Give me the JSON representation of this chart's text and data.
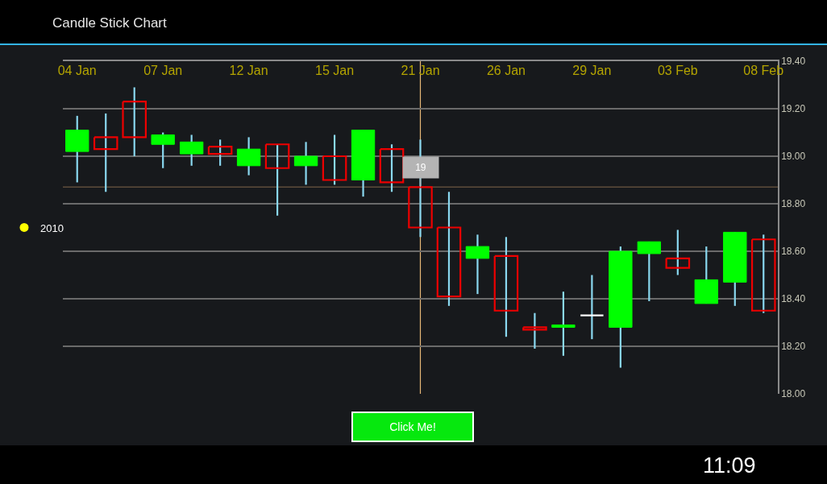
{
  "chart_data": {
    "type": "candlestick",
    "title": "Candle Stick Chart",
    "categories": [
      "04 Jan",
      null,
      null,
      "07 Jan",
      null,
      null,
      "12 Jan",
      null,
      null,
      "15 Jan",
      null,
      null,
      "21 Jan",
      null,
      null,
      "26 Jan",
      null,
      null,
      "29 Jan",
      null,
      null,
      "03 Feb",
      null,
      null,
      "08 Feb"
    ],
    "series": [
      {
        "name": "2010",
        "color": "#ffff00",
        "ohlc": [
          [
            19.02,
            19.17,
            18.89,
            19.11
          ],
          [
            19.08,
            19.18,
            18.85,
            19.03
          ],
          [
            19.23,
            19.29,
            19.0,
            19.08
          ],
          [
            19.05,
            19.1,
            18.95,
            19.09
          ],
          [
            19.01,
            19.09,
            18.96,
            19.06
          ],
          [
            19.04,
            19.07,
            18.96,
            19.01
          ],
          [
            18.96,
            19.08,
            18.92,
            19.03
          ],
          [
            19.05,
            19.05,
            18.75,
            18.95
          ],
          [
            18.96,
            19.06,
            18.88,
            19.0
          ],
          [
            19.0,
            19.09,
            18.88,
            18.9
          ],
          [
            18.9,
            19.11,
            18.83,
            19.11
          ],
          [
            19.03,
            19.05,
            18.85,
            18.89
          ],
          [
            18.87,
            19.07,
            18.66,
            18.7
          ],
          [
            18.7,
            18.85,
            18.37,
            18.41
          ],
          [
            18.57,
            18.67,
            18.42,
            18.62
          ],
          [
            18.58,
            18.66,
            18.24,
            18.35
          ],
          [
            18.28,
            18.34,
            18.19,
            18.27
          ],
          [
            18.28,
            18.43,
            18.16,
            18.29
          ],
          [
            18.33,
            18.5,
            18.23,
            18.33
          ],
          [
            18.28,
            18.62,
            18.11,
            18.6
          ],
          [
            18.59,
            18.64,
            18.39,
            18.64
          ],
          [
            18.57,
            18.69,
            18.5,
            18.53
          ],
          [
            18.38,
            18.62,
            18.38,
            18.48
          ],
          [
            18.47,
            18.68,
            18.37,
            18.68
          ],
          [
            18.65,
            18.67,
            18.34,
            18.35
          ]
        ],
        "colors": [
          "#00ff00",
          "#ee0000",
          "#ee0000",
          "#00ff00",
          "#00ff00",
          "#ee0000",
          "#00ff00",
          "#ee0000",
          "#00ff00",
          "#ee0000",
          "#00ff00",
          "#ee0000",
          "#ee0000",
          "#ee0000",
          "#00ff00",
          "#ee0000",
          "#ee0000",
          "#00ff00",
          "#ffffff",
          "#00ff00",
          "#00ff00",
          "#ee0000",
          "#00ff00",
          "#00ff00",
          "#ee0000"
        ]
      }
    ],
    "ylim": [
      18.0,
      19.4
    ],
    "yticks": [
      {
        "value": 18.0,
        "label": "18.00"
      },
      {
        "value": 18.2,
        "label": "18.20"
      },
      {
        "value": 18.4,
        "label": "18.40"
      },
      {
        "value": 18.6,
        "label": "18.60"
      },
      {
        "value": 18.8,
        "label": "18.80"
      },
      {
        "value": 19.0,
        "label": "19.00"
      },
      {
        "value": 19.2,
        "label": "19.20"
      },
      {
        "value": 19.4,
        "label": "19.40"
      }
    ],
    "grid": "y",
    "legend": "left",
    "ref_lines": [
      {
        "axis": "x",
        "value": "21 Jan",
        "color": "#e8b878"
      },
      {
        "axis": "y",
        "value": 18.87,
        "color": "#5e4c3a"
      }
    ],
    "annotations": [
      {
        "text": "19",
        "x": "21 Jan",
        "y": 18.87
      },
      "Click Me!",
      "11:09"
    ]
  }
}
